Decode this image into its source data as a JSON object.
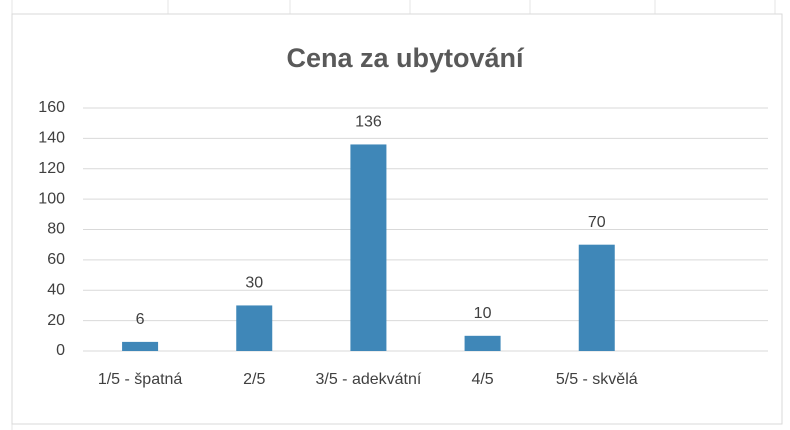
{
  "chart_data": {
    "type": "bar",
    "title": "Cena za ubytování",
    "categories": [
      "1/5 - špatná",
      "2/5",
      "3/5 - adekvátní",
      "4/5",
      "5/5 - skvělá",
      null
    ],
    "values": [
      6,
      30,
      136,
      10,
      70,
      null
    ],
    "color": "#3f87b8",
    "ylim": [
      0,
      160
    ],
    "yticks": [
      0,
      20,
      40,
      60,
      80,
      100,
      120,
      140,
      160
    ],
    "grid": true
  }
}
